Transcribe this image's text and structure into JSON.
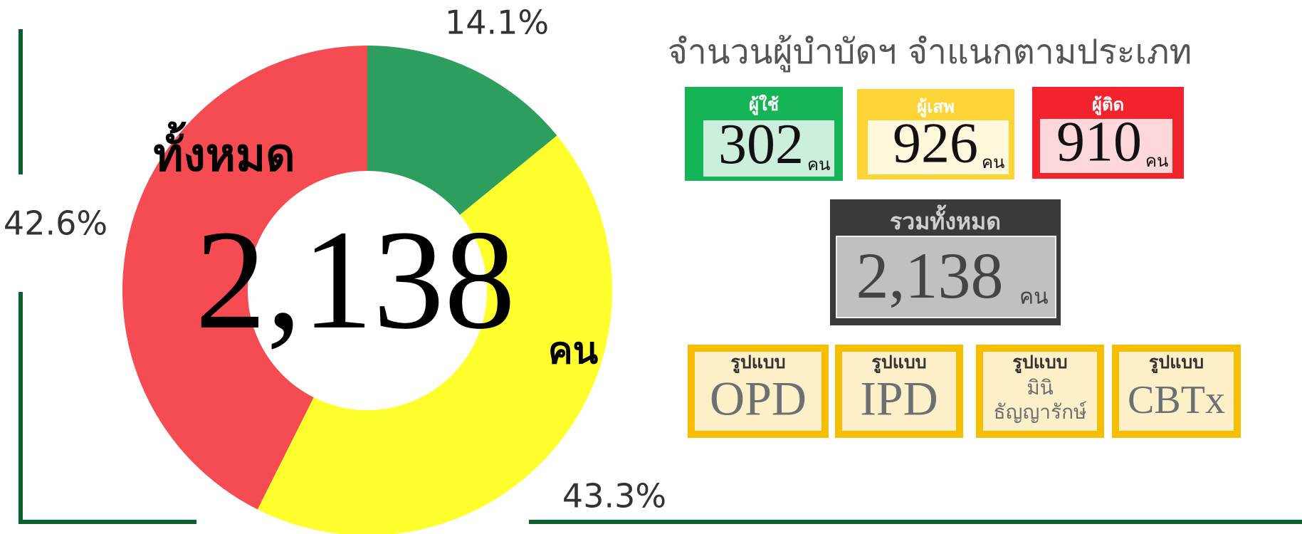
{
  "chart_data": {
    "type": "pie",
    "donut": true,
    "values": [
      14.1,
      43.3,
      42.6
    ],
    "value_labels": [
      "14.1%",
      "43.3%",
      "42.6%"
    ],
    "colors": [
      "#2e9e5f",
      "#ffff2e",
      "#f54b52"
    ],
    "center_label": "ทั้งหมด",
    "center_value": "2,138",
    "center_unit": "คน"
  },
  "panel": {
    "title": "จำนวนผู้บำบัดฯ จำแนกตามประเภท",
    "cards": [
      {
        "label": "ผู้ใช้",
        "value": 302,
        "unit": "คน",
        "color": "#14b457",
        "inner": "#ccefdc"
      },
      {
        "label": "ผู้เสพ",
        "value": 926,
        "unit": "คน",
        "color": "#fdd435",
        "inner": "#fff8dd"
      },
      {
        "label": "ผู้ติด",
        "value": 910,
        "unit": "คน",
        "color": "#f2232c",
        "inner": "#fdd7d9"
      }
    ],
    "total": {
      "label": "รวมทั้งหมด",
      "value": "2,138",
      "unit": "คน"
    },
    "formats": [
      {
        "label": "รูปแบบ",
        "lines": [
          "OPD"
        ]
      },
      {
        "label": "รูปแบบ",
        "lines": [
          "IPD"
        ]
      },
      {
        "label": "รูปแบบ",
        "lines": [
          "มินิ",
          "ธัญญารักษ์"
        ]
      },
      {
        "label": "รูปแบบ",
        "lines": [
          "CBTx"
        ]
      }
    ]
  }
}
